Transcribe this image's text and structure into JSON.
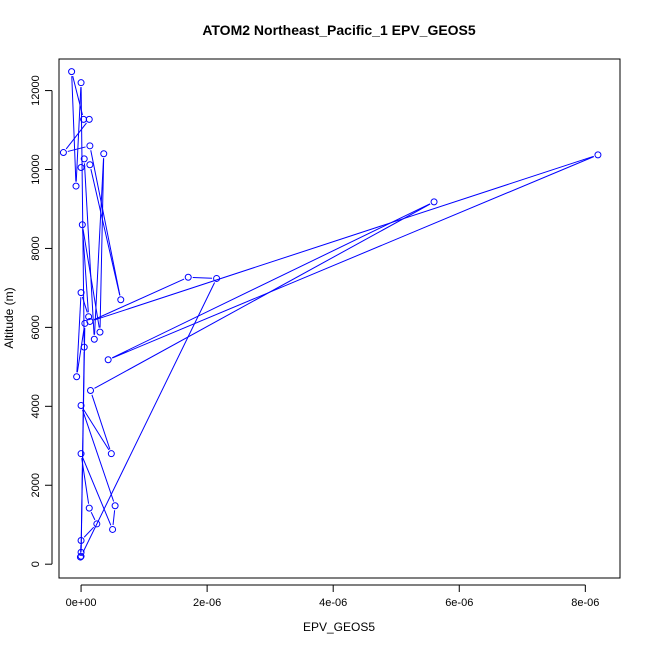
{
  "chart_data": {
    "type": "line",
    "title": "ATOM2 Northeast_Pacific_1 EPV_GEOS5",
    "xlabel": "EPV_GEOS5",
    "ylabel": "Altitude (m)",
    "xlim": [
      -3.5e-07,
      8.55e-06
    ],
    "ylim": [
      -350,
      12800
    ],
    "xticks": [
      0,
      2e-06,
      4e-06,
      6e-06,
      8e-06
    ],
    "xtick_labels": [
      "0e+00",
      "2e-06",
      "4e-06",
      "6e-06",
      "8e-06"
    ],
    "yticks": [
      0,
      2000,
      4000,
      6000,
      8000,
      10000,
      12000
    ],
    "ytick_labels": [
      "0",
      "2000",
      "4000",
      "6000",
      "8000",
      "10000",
      "12000"
    ],
    "grid": false,
    "legend": "none",
    "line_color": "#0000ff",
    "marker": "open-circle",
    "series": [
      {
        "points": [
          [
            -1e-08,
            180
          ],
          [
            0,
            600
          ],
          [
            2.5e-07,
            1020
          ],
          [
            1.3e-07,
            1420
          ],
          [
            0,
            2800
          ],
          [
            5e-07,
            880
          ],
          [
            5.4e-07,
            1480
          ],
          [
            0,
            4020
          ],
          [
            4.8e-07,
            2800
          ],
          [
            1.5e-07,
            4400
          ],
          [
            5.6e-06,
            9180
          ],
          [
            4.3e-07,
            5180
          ],
          [
            8.2e-06,
            10370
          ],
          [
            1.4e-07,
            6150
          ],
          [
            1.7e-06,
            7270
          ],
          [
            2.15e-06,
            7240
          ],
          [
            0,
            200
          ],
          [
            6e-08,
            6100
          ],
          [
            -7e-08,
            4750
          ],
          [
            0,
            6880
          ],
          [
            1.2e-07,
            6270
          ],
          [
            2e-08,
            8600
          ],
          [
            3e-07,
            5880
          ],
          [
            3.6e-07,
            10400
          ],
          [
            2.1e-07,
            5700
          ],
          [
            5e-08,
            10270
          ],
          [
            0,
            10050
          ],
          [
            1.4e-07,
            10120
          ],
          [
            6.3e-07,
            6700
          ],
          [
            1.4e-07,
            10600
          ],
          [
            -2.8e-07,
            10430
          ],
          [
            1.3e-07,
            11270
          ],
          [
            4e-08,
            11270
          ],
          [
            -1.5e-07,
            12480
          ],
          [
            -8e-08,
            9580
          ],
          [
            0,
            12200
          ],
          [
            5e-08,
            5500
          ],
          [
            0,
            300
          ]
        ]
      }
    ]
  }
}
